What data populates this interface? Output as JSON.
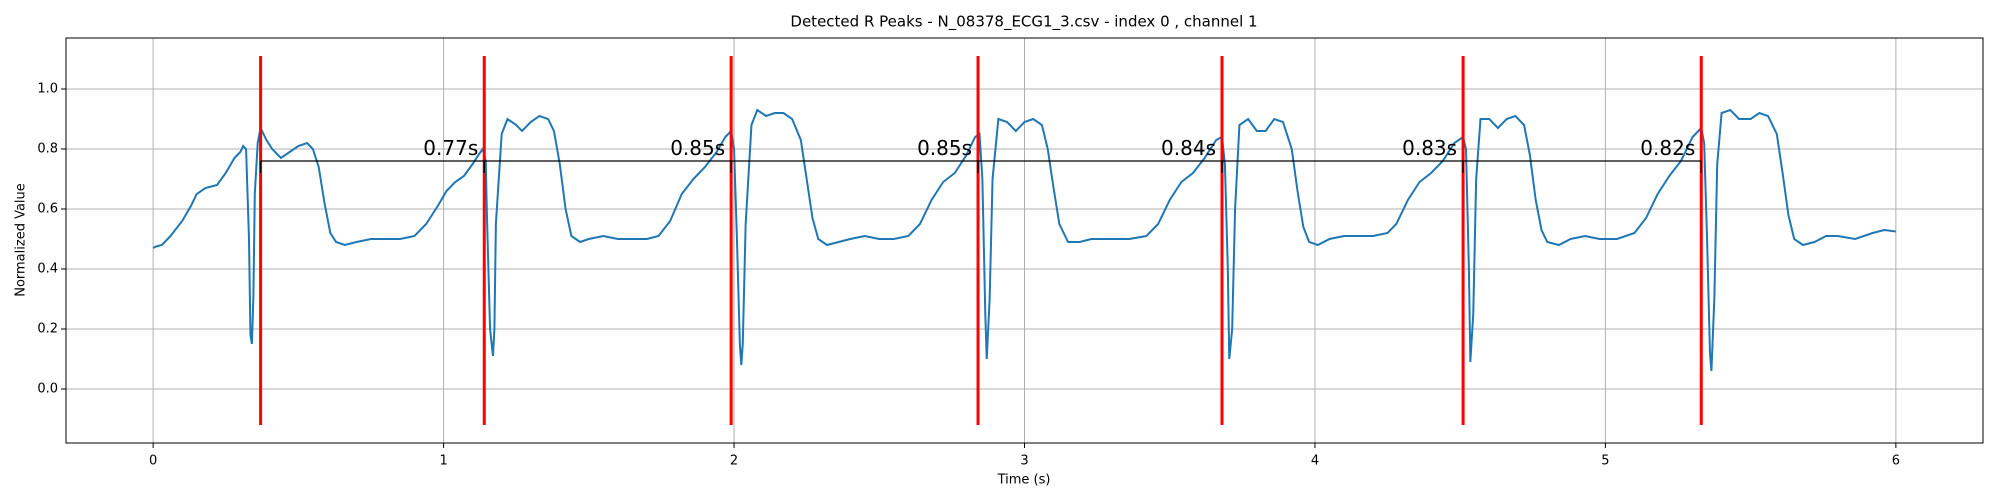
{
  "chart_data": {
    "type": "line",
    "title": "Detected R Peaks - N_08378_ECG1_3.csv - index 0 , channel 1",
    "xlabel": "Time (s)",
    "ylabel": "Normalized Value",
    "xlim": [
      -0.3,
      6.3
    ],
    "ylim": [
      -0.18,
      1.17
    ],
    "xticks": [
      0,
      1,
      2,
      3,
      4,
      5,
      6
    ],
    "yticks": [
      {
        "value": 0,
        "label": "0.0"
      },
      0.2,
      0.4,
      0.6,
      0.8,
      {
        "value": 1,
        "label": "1.0"
      }
    ],
    "grid": true,
    "x": [
      0,
      0.01,
      0.03,
      0.06,
      0.1,
      0.13,
      0.15,
      0.18,
      0.2,
      0.22,
      0.25,
      0.28,
      0.3,
      0.31,
      0.32,
      0.33,
      0.335,
      0.34,
      0.345,
      0.35,
      0.36,
      0.37,
      0.39,
      0.41,
      0.44,
      0.47,
      0.5,
      0.53,
      0.55,
      0.57,
      0.59,
      0.61,
      0.63,
      0.66,
      0.7,
      0.75,
      0.8,
      0.85,
      0.9,
      0.94,
      0.98,
      1.01,
      1.04,
      1.07,
      1.1,
      1.12,
      1.135,
      1.145,
      1.15,
      1.16,
      1.17,
      1.175,
      1.18,
      1.2,
      1.22,
      1.25,
      1.27,
      1.3,
      1.33,
      1.36,
      1.38,
      1.4,
      1.42,
      1.44,
      1.47,
      1.5,
      1.55,
      1.6,
      1.65,
      1.7,
      1.74,
      1.78,
      1.82,
      1.86,
      1.9,
      1.94,
      1.97,
      1.99,
      2.0,
      2.01,
      2.02,
      2.025,
      2.03,
      2.04,
      2.06,
      2.08,
      2.11,
      2.14,
      2.17,
      2.2,
      2.23,
      2.25,
      2.27,
      2.29,
      2.32,
      2.36,
      2.4,
      2.45,
      2.5,
      2.55,
      2.6,
      2.64,
      2.68,
      2.72,
      2.76,
      2.8,
      2.83,
      2.845,
      2.855,
      2.865,
      2.87,
      2.88,
      2.89,
      2.91,
      2.94,
      2.97,
      3.0,
      3.03,
      3.06,
      3.08,
      3.1,
      3.12,
      3.15,
      3.19,
      3.23,
      3.3,
      3.36,
      3.42,
      3.46,
      3.5,
      3.54,
      3.58,
      3.62,
      3.66,
      3.68,
      3.69,
      3.7,
      3.705,
      3.715,
      3.725,
      3.74,
      3.77,
      3.8,
      3.83,
      3.86,
      3.89,
      3.92,
      3.94,
      3.96,
      3.98,
      4.01,
      4.05,
      4.1,
      4.15,
      4.2,
      4.25,
      4.28,
      4.32,
      4.36,
      4.4,
      4.44,
      4.48,
      4.51,
      4.52,
      4.53,
      4.535,
      4.545,
      4.555,
      4.57,
      4.6,
      4.63,
      4.66,
      4.69,
      4.72,
      4.74,
      4.76,
      4.78,
      4.8,
      4.84,
      4.88,
      4.93,
      4.98,
      5.04,
      5.1,
      5.14,
      5.18,
      5.22,
      5.26,
      5.3,
      5.33,
      5.34,
      5.35,
      5.36,
      5.365,
      5.375,
      5.385,
      5.4,
      5.43,
      5.46,
      5.5,
      5.53,
      5.56,
      5.59,
      5.61,
      5.63,
      5.65,
      5.68,
      5.72,
      5.76,
      5.8,
      5.86,
      5.92,
      5.96,
      6.0
    ],
    "series": [
      {
        "color": "#1f77b4",
        "values": [
          0.47,
          0.475,
          0.48,
          0.51,
          0.56,
          0.61,
          0.65,
          0.67,
          0.675,
          0.68,
          0.72,
          0.77,
          0.79,
          0.81,
          0.8,
          0.5,
          0.18,
          0.15,
          0.3,
          0.65,
          0.82,
          0.87,
          0.83,
          0.8,
          0.77,
          0.79,
          0.81,
          0.82,
          0.8,
          0.74,
          0.62,
          0.52,
          0.49,
          0.48,
          0.49,
          0.5,
          0.5,
          0.5,
          0.51,
          0.55,
          0.61,
          0.66,
          0.69,
          0.71,
          0.75,
          0.78,
          0.8,
          0.76,
          0.55,
          0.2,
          0.11,
          0.2,
          0.55,
          0.85,
          0.9,
          0.88,
          0.86,
          0.89,
          0.91,
          0.9,
          0.86,
          0.75,
          0.6,
          0.51,
          0.49,
          0.5,
          0.51,
          0.5,
          0.5,
          0.5,
          0.51,
          0.56,
          0.65,
          0.7,
          0.74,
          0.79,
          0.84,
          0.86,
          0.8,
          0.5,
          0.15,
          0.08,
          0.15,
          0.55,
          0.88,
          0.93,
          0.91,
          0.92,
          0.92,
          0.9,
          0.83,
          0.7,
          0.57,
          0.5,
          0.48,
          0.49,
          0.5,
          0.51,
          0.5,
          0.5,
          0.51,
          0.55,
          0.63,
          0.69,
          0.72,
          0.78,
          0.84,
          0.85,
          0.7,
          0.25,
          0.1,
          0.3,
          0.7,
          0.9,
          0.89,
          0.86,
          0.89,
          0.9,
          0.88,
          0.8,
          0.67,
          0.55,
          0.49,
          0.49,
          0.5,
          0.5,
          0.5,
          0.51,
          0.55,
          0.63,
          0.69,
          0.72,
          0.77,
          0.83,
          0.84,
          0.75,
          0.4,
          0.1,
          0.2,
          0.6,
          0.88,
          0.9,
          0.86,
          0.86,
          0.9,
          0.89,
          0.8,
          0.66,
          0.54,
          0.49,
          0.48,
          0.5,
          0.51,
          0.51,
          0.51,
          0.52,
          0.55,
          0.63,
          0.69,
          0.72,
          0.76,
          0.82,
          0.84,
          0.8,
          0.4,
          0.09,
          0.25,
          0.7,
          0.9,
          0.9,
          0.87,
          0.9,
          0.91,
          0.88,
          0.78,
          0.63,
          0.53,
          0.49,
          0.48,
          0.5,
          0.51,
          0.5,
          0.5,
          0.52,
          0.57,
          0.65,
          0.71,
          0.76,
          0.84,
          0.87,
          0.82,
          0.5,
          0.12,
          0.06,
          0.3,
          0.75,
          0.92,
          0.93,
          0.9,
          0.9,
          0.92,
          0.91,
          0.85,
          0.72,
          0.58,
          0.5,
          0.48,
          0.49,
          0.51,
          0.51,
          0.5,
          0.52,
          0.53,
          0.525
        ]
      }
    ],
    "r_peaks": {
      "x": [
        0.37,
        1.14,
        1.99,
        2.84,
        3.68,
        4.51,
        5.33
      ],
      "ymin": -0.12,
      "ymax": 1.11,
      "color": "#ff0000"
    },
    "intervals": {
      "y": 0.76,
      "color": "#000000",
      "values": [
        0.77,
        0.85,
        0.85,
        0.84,
        0.83,
        0.82
      ],
      "value_labels": [
        "0.77s",
        "0.85s",
        "0.85s",
        "0.84s",
        "0.83s",
        "0.82s"
      ]
    }
  }
}
